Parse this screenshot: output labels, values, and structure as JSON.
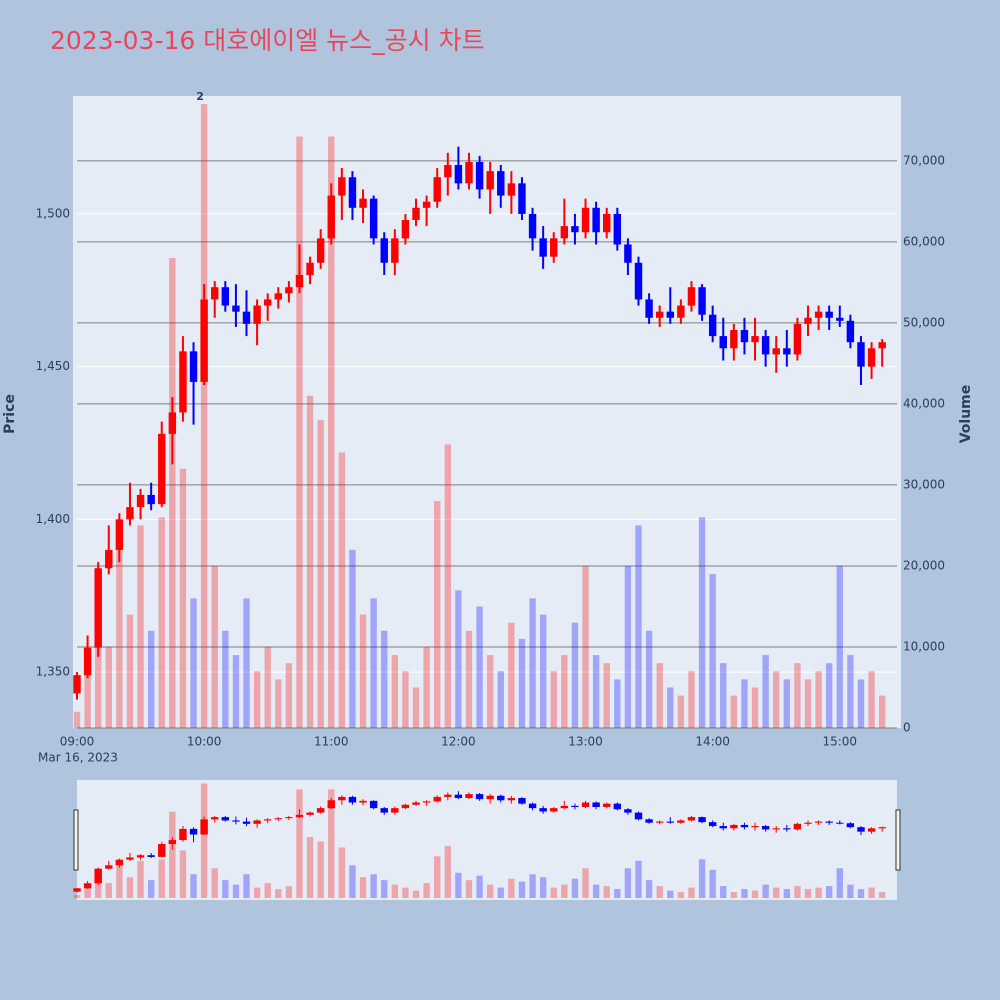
{
  "chart_data": {
    "type": "candlestick",
    "title": "2023-03-16 대호에이엘 뉴스_공시 차트",
    "yaxis_title": "Price",
    "y2axis_title": "Volume",
    "x_date_label": "Mar 16, 2023",
    "increasing_color": "#ff0000",
    "decreasing_color": "#0000ff",
    "x": [
      "09:00",
      "09:05",
      "09:10",
      "09:15",
      "09:20",
      "09:25",
      "09:30",
      "09:35",
      "09:40",
      "09:45",
      "09:50",
      "09:55",
      "10:00",
      "10:05",
      "10:10",
      "10:15",
      "10:20",
      "10:25",
      "10:30",
      "10:35",
      "10:40",
      "10:45",
      "10:50",
      "10:55",
      "11:00",
      "11:05",
      "11:10",
      "11:15",
      "11:20",
      "11:25",
      "11:30",
      "11:35",
      "11:40",
      "11:45",
      "11:50",
      "11:55",
      "12:00",
      "12:05",
      "12:10",
      "12:15",
      "12:20",
      "12:25",
      "12:30",
      "12:35",
      "12:40",
      "12:45",
      "12:50",
      "12:55",
      "13:00",
      "13:05",
      "13:10",
      "13:15",
      "13:20",
      "13:25",
      "13:30",
      "13:35",
      "13:40",
      "13:45",
      "13:50",
      "13:55",
      "14:00",
      "14:05",
      "14:10",
      "14:15",
      "14:20",
      "14:25",
      "14:30",
      "14:35",
      "14:40",
      "14:45",
      "14:50",
      "14:55",
      "15:00",
      "15:05",
      "15:10",
      "15:15",
      "15:20"
    ],
    "open": [
      1343,
      1349,
      1358,
      1384,
      1390,
      1400,
      1404,
      1408,
      1405,
      1428,
      1435,
      1455,
      1445,
      1472,
      1476,
      1470,
      1468,
      1464,
      1470,
      1472,
      1474,
      1476,
      1480,
      1484,
      1492,
      1506,
      1512,
      1502,
      1505,
      1492,
      1484,
      1492,
      1498,
      1502,
      1504,
      1512,
      1516,
      1510,
      1517,
      1508,
      1514,
      1506,
      1510,
      1500,
      1492,
      1486,
      1492,
      1496,
      1494,
      1502,
      1494,
      1500,
      1490,
      1484,
      1472,
      1466,
      1468,
      1466,
      1470,
      1476,
      1467,
      1460,
      1456,
      1462,
      1458,
      1460,
      1454,
      1456,
      1454,
      1464,
      1466,
      1468,
      1466,
      1465,
      1458,
      1450,
      1456
    ],
    "high": [
      1350,
      1362,
      1386,
      1398,
      1402,
      1412,
      1410,
      1412,
      1432,
      1440,
      1460,
      1458,
      1477,
      1478,
      1478,
      1477,
      1475,
      1472,
      1474,
      1476,
      1478,
      1490,
      1486,
      1495,
      1510,
      1515,
      1514,
      1508,
      1506,
      1494,
      1495,
      1500,
      1505,
      1506,
      1515,
      1520,
      1522,
      1520,
      1519,
      1517,
      1516,
      1514,
      1512,
      1502,
      1496,
      1494,
      1505,
      1500,
      1505,
      1504,
      1502,
      1502,
      1492,
      1486,
      1474,
      1470,
      1476,
      1472,
      1478,
      1477,
      1470,
      1466,
      1464,
      1466,
      1466,
      1462,
      1460,
      1462,
      1466,
      1470,
      1470,
      1470,
      1470,
      1467,
      1460,
      1458,
      1459
    ],
    "low": [
      1341,
      1348,
      1355,
      1382,
      1386,
      1398,
      1400,
      1403,
      1404,
      1418,
      1432,
      1431,
      1444,
      1466,
      1468,
      1463,
      1460,
      1457,
      1465,
      1469,
      1471,
      1474,
      1477,
      1482,
      1490,
      1498,
      1498,
      1497,
      1490,
      1480,
      1480,
      1490,
      1496,
      1496,
      1502,
      1506,
      1508,
      1508,
      1505,
      1500,
      1502,
      1500,
      1498,
      1488,
      1482,
      1484,
      1490,
      1490,
      1492,
      1490,
      1492,
      1488,
      1480,
      1470,
      1464,
      1463,
      1464,
      1464,
      1468,
      1465,
      1458,
      1452,
      1452,
      1454,
      1452,
      1450,
      1448,
      1450,
      1452,
      1460,
      1462,
      1462,
      1463,
      1456,
      1444,
      1446,
      1450
    ],
    "close": [
      1349,
      1358,
      1384,
      1390,
      1400,
      1404,
      1408,
      1405,
      1428,
      1435,
      1455,
      1445,
      1472,
      1476,
      1470,
      1468,
      1464,
      1470,
      1472,
      1474,
      1476,
      1480,
      1484,
      1492,
      1506,
      1512,
      1502,
      1505,
      1492,
      1484,
      1492,
      1498,
      1502,
      1504,
      1512,
      1516,
      1510,
      1517,
      1508,
      1514,
      1506,
      1510,
      1500,
      1492,
      1486,
      1492,
      1496,
      1494,
      1502,
      1494,
      1500,
      1490,
      1484,
      1472,
      1466,
      1468,
      1466,
      1470,
      1476,
      1467,
      1460,
      1456,
      1462,
      1458,
      1460,
      1454,
      1456,
      1454,
      1464,
      1466,
      1468,
      1466,
      1465,
      1458,
      1450,
      1456,
      1458
    ],
    "volume": [
      2000,
      8000,
      18000,
      10000,
      22000,
      14000,
      25000,
      12000,
      26000,
      58000,
      32000,
      16000,
      77000,
      20000,
      12000,
      9000,
      16000,
      7000,
      10000,
      6000,
      8000,
      73000,
      41000,
      38000,
      73000,
      34000,
      22000,
      14000,
      16000,
      12000,
      9000,
      7000,
      5000,
      10000,
      28000,
      35000,
      17000,
      12000,
      15000,
      9000,
      7000,
      13000,
      11000,
      16000,
      14000,
      7000,
      9000,
      13000,
      20000,
      9000,
      8000,
      6000,
      20000,
      25000,
      12000,
      8000,
      5000,
      4000,
      7000,
      26000,
      19000,
      8000,
      4000,
      6000,
      5000,
      9000,
      7000,
      6000,
      8000,
      6000,
      7000,
      8000,
      20000,
      9000,
      6000,
      7000,
      4000
    ],
    "xlim": [
      "09:00",
      "15:27"
    ],
    "xticks": [
      "09:00",
      "10:00",
      "11:00",
      "12:00",
      "13:00",
      "14:00",
      "15:00"
    ],
    "ylim": [
      1331.7,
      1538.6
    ],
    "yticks": [
      {
        "value": 1350,
        "label": "1,350"
      },
      {
        "value": 1400,
        "label": "1,400"
      },
      {
        "value": 1450,
        "label": "1,450"
      },
      {
        "value": 1500,
        "label": "1,500"
      }
    ],
    "y2lim": [
      0,
      78000
    ],
    "y2ticks": [
      0,
      {
        "value": 10000,
        "label": "10,000"
      },
      {
        "value": 20000,
        "label": "20,000"
      },
      {
        "value": 30000,
        "label": "30,000"
      },
      {
        "value": 40000,
        "label": "40,000"
      },
      {
        "value": 50000,
        "label": "50,000"
      },
      {
        "value": 60000,
        "label": "60,000"
      },
      {
        "value": 70000,
        "label": "70,000"
      }
    ],
    "annotation": {
      "x": "10:00",
      "text": "2"
    },
    "grid": true,
    "rangeslider": true
  }
}
